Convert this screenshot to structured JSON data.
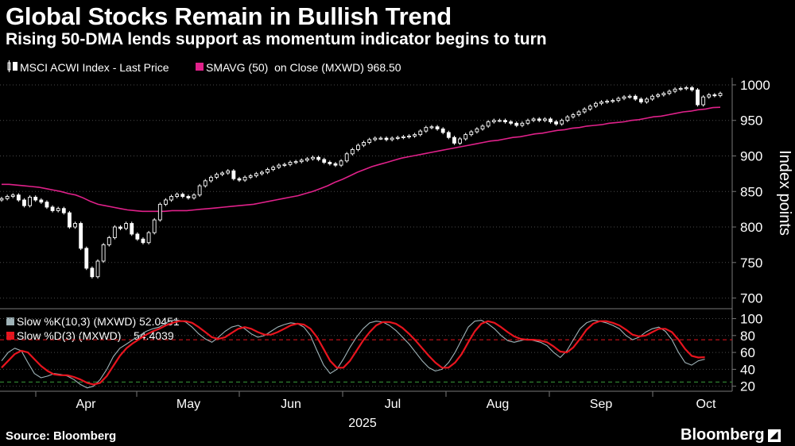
{
  "header": {
    "title": "Global Stocks Remain in Bullish Trend",
    "subtitle": "Rising 50-DMA lends support as momentum indicator begins to turn"
  },
  "footer": {
    "source": "Source: Bloomberg",
    "logo": "Bloomberg"
  },
  "colors": {
    "background": "#000000",
    "price": "#ffffff",
    "sma": "#e0218a",
    "slow_k": "#9fb3b8",
    "slow_d": "#e8141e",
    "upper_band": "#e8141e",
    "lower_band": "#3a9a3a",
    "grid": "#4a4a4a"
  },
  "chart_data": [
    {
      "type": "line",
      "subtype": "candlestick",
      "ylabel": "Index points",
      "ylim": [
        685,
        1010
      ],
      "yticks": [
        "1000",
        "950",
        "900",
        "850",
        "800",
        "750",
        "700"
      ],
      "ytick_values": [
        1000,
        950,
        900,
        850,
        800,
        750,
        700
      ],
      "grid": true,
      "legend": [
        {
          "label": "MSCI ACWI Index - Last Price",
          "icon": "candle-icon"
        },
        {
          "label": "SMAVG (50)  on Close (MXWD) 968.50",
          "icon": "magenta-square-icon"
        }
      ],
      "x_start": "2025-03-10",
      "series": [
        {
          "name": "MSCI ACWI Index - Last Price",
          "style": "candlestick",
          "close": [
            840,
            843,
            845,
            838,
            830,
            842,
            838,
            835,
            828,
            823,
            826,
            820,
            800,
            805,
            770,
            742,
            730,
            752,
            775,
            785,
            800,
            798,
            805,
            790,
            783,
            778,
            792,
            810,
            832,
            838,
            843,
            846,
            843,
            841,
            845,
            858,
            865,
            870,
            874,
            876,
            879,
            868,
            866,
            870,
            872,
            875,
            877,
            881,
            884,
            887,
            888,
            891,
            892,
            894,
            896,
            898,
            895,
            891,
            889,
            887,
            893,
            903,
            909,
            915,
            919,
            923,
            925,
            925,
            923,
            925,
            926,
            927,
            928,
            930,
            935,
            940,
            941,
            938,
            933,
            926,
            918,
            924,
            930,
            934,
            938,
            942,
            948,
            950,
            950,
            948,
            946,
            943,
            946,
            950,
            952,
            950,
            952,
            948,
            945,
            950,
            955,
            958,
            962,
            966,
            970,
            974,
            976,
            977,
            978,
            981,
            983,
            984,
            980,
            976,
            980,
            984,
            986,
            988,
            991,
            994,
            995,
            996,
            993,
            972,
            983,
            986,
            985,
            988
          ]
        },
        {
          "name": "SMAVG (50)  on Close (MXWD) 968.50",
          "style": "line",
          "values": [
            860,
            860,
            859,
            858,
            857,
            856,
            854,
            852,
            850,
            847,
            845,
            841,
            836,
            832,
            830,
            828,
            826,
            824,
            823,
            822,
            822,
            822,
            822,
            823,
            823,
            823,
            824,
            825,
            826,
            827,
            828,
            829,
            830,
            831,
            832,
            834,
            836,
            838,
            840,
            842,
            844,
            847,
            850,
            854,
            858,
            863,
            867,
            872,
            877,
            881,
            885,
            888,
            891,
            894,
            897,
            899,
            901,
            903,
            905,
            907,
            909,
            911,
            913,
            915,
            917,
            919,
            921,
            922,
            924,
            926,
            927,
            929,
            931,
            932,
            934,
            936,
            937,
            939,
            940,
            942,
            943,
            944,
            946,
            947,
            948,
            950,
            951,
            953,
            955,
            956,
            958,
            960,
            962,
            963,
            965,
            966,
            968,
            968.5
          ]
        }
      ]
    },
    {
      "type": "line",
      "ylim": [
        15,
        108
      ],
      "yticks": [
        "100",
        "80",
        "60",
        "40",
        "20"
      ],
      "ytick_values": [
        100,
        80,
        60,
        40,
        20
      ],
      "reference_lines": [
        75,
        25
      ],
      "legend": [
        {
          "label": "Slow %K(10,3) (MXWD) 52.0451",
          "icon": "teal-square-icon"
        },
        {
          "label": "Slow %D(3) (MXWD)    54.4039",
          "icon": "red-square-icon"
        }
      ],
      "series": [
        {
          "name": "Slow %K(10,3) (MXWD) 52.0451",
          "values": [
            50,
            60,
            65,
            62,
            48,
            35,
            30,
            32,
            35,
            34,
            32,
            28,
            22,
            18,
            20,
            28,
            40,
            55,
            65,
            70,
            75,
            80,
            85,
            88,
            90,
            95,
            98,
            98,
            96,
            90,
            82,
            76,
            72,
            78,
            85,
            90,
            92,
            88,
            82,
            78,
            80,
            85,
            90,
            93,
            95,
            94,
            90,
            80,
            62,
            45,
            35,
            40,
            52,
            66,
            78,
            88,
            95,
            97,
            96,
            92,
            86,
            78,
            70,
            60,
            50,
            42,
            38,
            40,
            48,
            60,
            75,
            90,
            97,
            98,
            94,
            88,
            80,
            74,
            72,
            74,
            76,
            74,
            72,
            68,
            60,
            54,
            62,
            75,
            88,
            95,
            98,
            97,
            95,
            92,
            88,
            80,
            75,
            78,
            84,
            88,
            90,
            85,
            75,
            60,
            48,
            45,
            50,
            52
          ],
          "x_end_fraction": 0.993
        },
        {
          "name": "Slow %D(3) (MXWD)    54.4039",
          "values": [
            42,
            50,
            58,
            62,
            60,
            52,
            44,
            38,
            34,
            33,
            33,
            31,
            28,
            24,
            22,
            24,
            32,
            44,
            56,
            65,
            71,
            76,
            81,
            85,
            88,
            92,
            95,
            97,
            97,
            95,
            90,
            84,
            78,
            76,
            78,
            83,
            88,
            90,
            88,
            84,
            81,
            81,
            84,
            88,
            92,
            94,
            93,
            88,
            78,
            64,
            50,
            42,
            42,
            50,
            62,
            74,
            84,
            92,
            96,
            96,
            94,
            89,
            82,
            74,
            65,
            56,
            48,
            42,
            42,
            48,
            58,
            72,
            85,
            94,
            97,
            95,
            90,
            84,
            79,
            76,
            75,
            75,
            74,
            72,
            67,
            61,
            60,
            66,
            76,
            87,
            94,
            97,
            97,
            95,
            92,
            87,
            81,
            79,
            80,
            84,
            88,
            88,
            84,
            75,
            64,
            56,
            54,
            54.4
          ],
          "x_end_fraction": 0.993
        }
      ]
    }
  ],
  "x_axis": {
    "labels": [
      "Apr",
      "May",
      "Jun",
      "Jul",
      "Aug",
      "Sep",
      "Oct"
    ],
    "year": "2025"
  }
}
